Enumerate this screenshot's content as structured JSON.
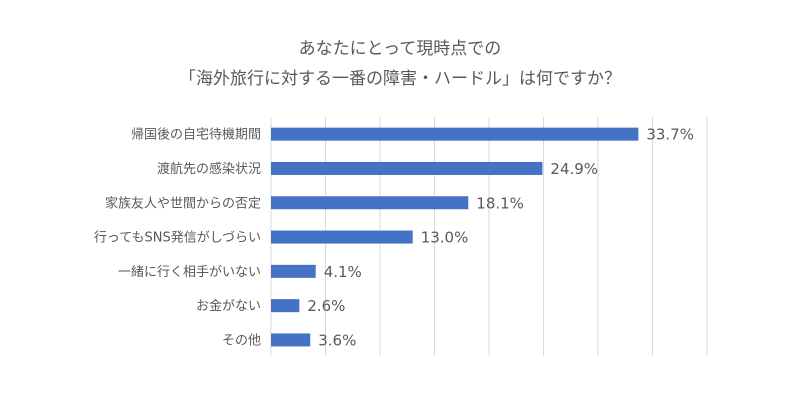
{
  "title_line1": "あなたにとって現時点での",
  "title_line2": "「海外旅行に対する一番の障害・ハードル」は何ですか？",
  "colors": {
    "bar": "#4472C4",
    "grid": "#D9D9D9",
    "text": "#595959"
  },
  "chart_data": {
    "type": "bar",
    "orientation": "horizontal",
    "title": "あなたにとって現時点での「海外旅行に対する一番の障害・ハードル」は何ですか？",
    "categories": [
      "帰国後の自宅待機期間",
      "渡航先の感染状況",
      "家族友人や世間からの否定",
      "行ってもSNS発信がしづらい",
      "一緒に行く相手がいない",
      "お金がない",
      "その他"
    ],
    "values": [
      33.7,
      24.9,
      18.1,
      13.0,
      4.1,
      2.6,
      3.6
    ],
    "value_labels": [
      "33.7%",
      "24.9%",
      "18.1%",
      "13.0%",
      "4.1%",
      "2.6%",
      "3.6%"
    ],
    "xlim": [
      0,
      40
    ],
    "grid": true,
    "legend": "none"
  }
}
